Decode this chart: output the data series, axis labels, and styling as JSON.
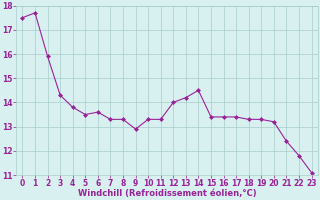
{
  "x": [
    0,
    1,
    2,
    3,
    4,
    5,
    6,
    7,
    8,
    9,
    10,
    11,
    12,
    13,
    14,
    15,
    16,
    17,
    18,
    19,
    20,
    21,
    22,
    23
  ],
  "y": [
    17.5,
    17.7,
    15.9,
    14.3,
    13.8,
    13.5,
    13.6,
    13.3,
    13.3,
    12.9,
    13.3,
    13.3,
    14.0,
    14.2,
    14.5,
    13.4,
    13.4,
    13.4,
    13.3,
    13.3,
    13.2,
    12.4,
    11.8,
    11.1
  ],
  "line_color": "#992299",
  "marker": "D",
  "marker_size": 2.0,
  "bg_color": "#d8f0f0",
  "grid_color": "#aacccc",
  "xlabel": "Windchill (Refroidissement éolien,°C)",
  "xlabel_color": "#992299",
  "xlabel_fontsize": 6.0,
  "tick_color": "#992299",
  "tick_fontsize": 5.5,
  "ylim": [
    11,
    18
  ],
  "xlim": [
    -0.5,
    23.5
  ],
  "yticks": [
    11,
    12,
    13,
    14,
    15,
    16,
    17,
    18
  ],
  "xticks": [
    0,
    1,
    2,
    3,
    4,
    5,
    6,
    7,
    8,
    9,
    10,
    11,
    12,
    13,
    14,
    15,
    16,
    17,
    18,
    19,
    20,
    21,
    22,
    23
  ]
}
